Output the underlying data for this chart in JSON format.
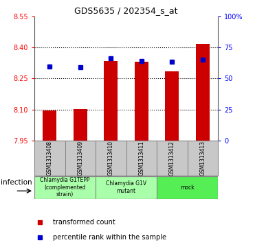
{
  "title": "GDS5635 / 202354_s_at",
  "samples": [
    "GSM1313408",
    "GSM1313409",
    "GSM1313410",
    "GSM1313411",
    "GSM1313412",
    "GSM1313413"
  ],
  "bar_values": [
    8.095,
    8.103,
    8.335,
    8.33,
    8.285,
    8.415
  ],
  "bar_bottom": 7.95,
  "dot_values": [
    8.308,
    8.305,
    8.348,
    8.335,
    8.33,
    8.34
  ],
  "ylim": [
    7.95,
    8.55
  ],
  "yticks_left": [
    7.95,
    8.1,
    8.25,
    8.4,
    8.55
  ],
  "yticks_right": [
    0,
    25,
    50,
    75,
    100
  ],
  "bar_color": "#cc0000",
  "dot_color": "#0000cc",
  "xtick_bg": "#c8c8c8",
  "group_info": [
    {
      "span": [
        0,
        1
      ],
      "label": "Chlamydia G1TEPP\n(complemented\nstrain)",
      "color": "#aaffaa"
    },
    {
      "span": [
        2,
        3
      ],
      "label": "Chlamydia G1V\nmutant",
      "color": "#aaffaa"
    },
    {
      "span": [
        4,
        5
      ],
      "label": "mock",
      "color": "#55ee55"
    }
  ],
  "factor_label": "infection",
  "legend_items": [
    {
      "color": "#cc0000",
      "label": "transformed count"
    },
    {
      "color": "#0000cc",
      "label": "percentile rank within the sample"
    }
  ]
}
